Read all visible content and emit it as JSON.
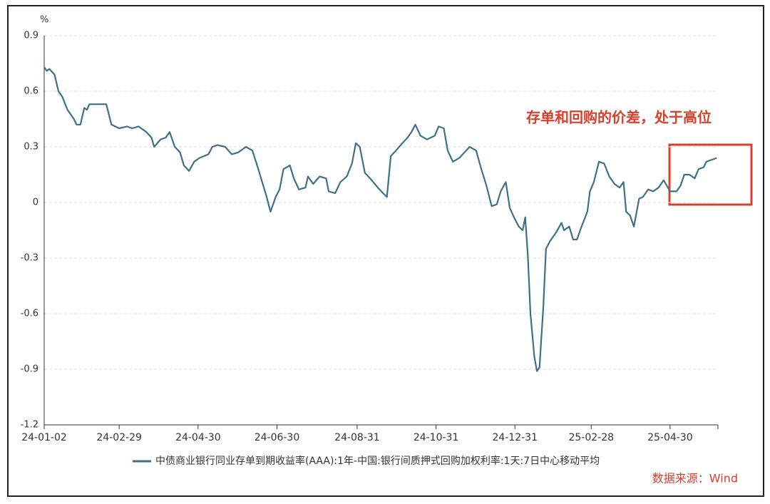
{
  "chart_data": {
    "type": "line",
    "y_label": "%",
    "annotation": "存单和回购的价差，处于高位",
    "source": "数据来源：Wind",
    "x": [
      "24-01-02",
      "24-01-04",
      "24-01-06",
      "24-01-10",
      "24-01-13",
      "24-01-16",
      "24-01-20",
      "24-01-25",
      "24-01-27",
      "24-01-30",
      "24-02-02",
      "24-02-04",
      "24-02-06",
      "24-02-10",
      "24-02-19",
      "24-02-23",
      "24-02-29",
      "24-03-06",
      "24-03-10",
      "24-03-15",
      "24-03-21",
      "24-03-25",
      "24-03-27",
      "24-04-01",
      "24-04-05",
      "24-04-08",
      "24-04-12",
      "24-04-16",
      "24-04-19",
      "24-04-23",
      "24-04-27",
      "24-05-01",
      "24-05-08",
      "24-05-11",
      "24-05-15",
      "24-05-21",
      "24-05-26",
      "24-05-31",
      "24-06-06",
      "24-06-11",
      "24-06-16",
      "24-06-22",
      "24-06-25",
      "24-06-29",
      "24-07-02",
      "24-07-05",
      "24-07-10",
      "24-07-13",
      "24-07-17",
      "24-07-22",
      "24-07-24",
      "24-07-28",
      "24-08-02",
      "24-08-07",
      "24-08-09",
      "24-08-14",
      "24-08-18",
      "24-08-23",
      "24-08-27",
      "24-08-30",
      "24-09-02",
      "24-09-06",
      "24-09-10",
      "24-09-16",
      "24-09-20",
      "24-09-23",
      "24-09-26",
      "24-09-30",
      "24-10-05",
      "24-10-09",
      "24-10-12",
      "24-10-15",
      "24-10-19",
      "24-10-24",
      "24-10-30",
      "24-11-02",
      "24-11-06",
      "24-11-09",
      "24-11-13",
      "24-11-18",
      "24-11-22",
      "24-11-26",
      "24-12-01",
      "24-12-05",
      "24-12-09",
      "24-12-13",
      "24-12-17",
      "24-12-20",
      "24-12-24",
      "24-12-27",
      "24-12-31",
      "25-01-03",
      "25-01-06",
      "25-01-08",
      "25-01-10",
      "25-01-12",
      "25-01-15",
      "25-01-17",
      "25-01-19",
      "25-01-22",
      "25-01-24",
      "25-01-27",
      "25-02-01",
      "25-02-05",
      "25-02-07",
      "25-02-11",
      "25-02-14",
      "25-02-17",
      "25-02-20",
      "25-02-25",
      "25-02-27",
      "25-03-02",
      "25-03-06",
      "25-03-10",
      "25-03-14",
      "25-03-18",
      "25-03-22",
      "25-03-25",
      "25-03-27",
      "25-03-30",
      "25-04-02",
      "25-04-06",
      "25-04-09",
      "25-04-13",
      "25-04-17",
      "25-04-21",
      "25-04-25",
      "25-04-30",
      "25-05-05",
      "25-05-08",
      "25-05-11",
      "25-05-15",
      "25-05-19",
      "25-05-22",
      "25-05-26",
      "25-05-28",
      "25-06-05"
    ],
    "series": [
      {
        "name": "中债商业银行同业存单到期收益率(AAA):1年-中国:银行间质押式回购加权利率:1天:7日中心移动平均",
        "color": "#3f7186",
        "values": [
          0.73,
          0.71,
          0.72,
          0.69,
          0.6,
          0.57,
          0.5,
          0.45,
          0.42,
          0.42,
          0.51,
          0.5,
          0.53,
          0.53,
          0.53,
          0.42,
          0.4,
          0.41,
          0.4,
          0.41,
          0.38,
          0.35,
          0.3,
          0.34,
          0.35,
          0.38,
          0.3,
          0.27,
          0.2,
          0.17,
          0.22,
          0.24,
          0.26,
          0.3,
          0.31,
          0.3,
          0.26,
          0.27,
          0.3,
          0.28,
          0.17,
          0.03,
          -0.05,
          0.03,
          0.07,
          0.18,
          0.2,
          0.13,
          0.07,
          0.08,
          0.14,
          0.1,
          0.14,
          0.13,
          0.06,
          0.05,
          0.11,
          0.14,
          0.21,
          0.32,
          0.3,
          0.16,
          0.13,
          0.08,
          0.05,
          0.03,
          0.25,
          0.28,
          0.32,
          0.35,
          0.38,
          0.42,
          0.36,
          0.34,
          0.36,
          0.41,
          0.4,
          0.28,
          0.22,
          0.24,
          0.27,
          0.3,
          0.28,
          0.18,
          0.09,
          -0.02,
          -0.01,
          0.06,
          0.11,
          -0.03,
          -0.09,
          -0.13,
          -0.15,
          -0.08,
          -0.29,
          -0.6,
          -0.83,
          -0.91,
          -0.89,
          -0.56,
          -0.25,
          -0.21,
          -0.16,
          -0.11,
          -0.15,
          -0.13,
          -0.2,
          -0.2,
          -0.14,
          -0.05,
          0.06,
          0.11,
          0.22,
          0.21,
          0.14,
          0.1,
          0.08,
          0.11,
          -0.05,
          -0.07,
          -0.13,
          0.02,
          0.03,
          0.07,
          0.06,
          0.08,
          0.12,
          0.06,
          0.06,
          0.09,
          0.15,
          0.15,
          0.13,
          0.18,
          0.19,
          0.22,
          0.24
        ]
      }
    ],
    "xlim": [
      "24-01-02",
      "25-06-06"
    ],
    "xticks": [
      "24-01-02",
      "24-02-29",
      "24-04-30",
      "24-06-30",
      "24-08-31",
      "24-10-31",
      "24-12-31",
      "25-02-28",
      "25-04-30"
    ],
    "ylim": [
      -1.2,
      0.9
    ],
    "yticks": [
      0.9,
      0.6,
      0.3,
      0,
      -0.3,
      -0.6,
      -0.9,
      -1.2
    ],
    "grid": true
  }
}
